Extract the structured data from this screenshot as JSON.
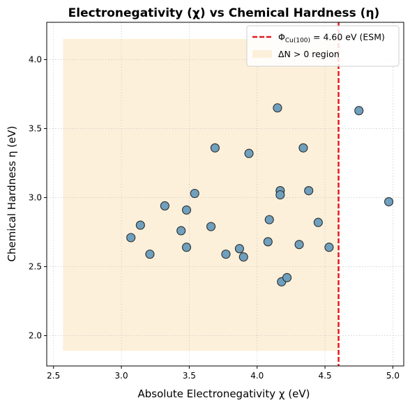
{
  "chart_data": {
    "type": "scatter",
    "title": "Electronegativity (χ) vs Chemical Hardness (η)",
    "xlabel": "Absolute Electronegativity χ (eV)",
    "ylabel": "Chemical Hardness η (eV)",
    "xlim": [
      2.45,
      5.08
    ],
    "ylim": [
      1.78,
      4.27
    ],
    "xticks": [
      "2.5",
      "3.0",
      "3.5",
      "4.0",
      "4.5",
      "5.0"
    ],
    "yticks": [
      "2.0",
      "2.5",
      "3.0",
      "3.5",
      "4.0"
    ],
    "grid": true,
    "legend_position": "top-right",
    "marker_color": "#6fa0bd",
    "marker_edge": "#2b2b2b",
    "shaded_region": {
      "x_range": [
        2.57,
        4.6
      ],
      "y_range": [
        1.89,
        4.15
      ],
      "color": "#fdf0da",
      "label": "ΔN > 0 region"
    },
    "vertical_line": {
      "x": 4.6,
      "color": "#e31a1c",
      "style": "dashed",
      "label_main": "Φ",
      "label_sub": "Cu(100)",
      "label_rest": " = 4.60 eV (ESM)"
    },
    "points": [
      {
        "x": 3.07,
        "y": 2.71
      },
      {
        "x": 3.14,
        "y": 2.8
      },
      {
        "x": 3.21,
        "y": 2.59
      },
      {
        "x": 3.32,
        "y": 2.94
      },
      {
        "x": 3.44,
        "y": 2.76
      },
      {
        "x": 3.48,
        "y": 2.91
      },
      {
        "x": 3.48,
        "y": 2.64
      },
      {
        "x": 3.54,
        "y": 3.03
      },
      {
        "x": 3.66,
        "y": 2.79
      },
      {
        "x": 3.69,
        "y": 3.36
      },
      {
        "x": 3.77,
        "y": 2.59
      },
      {
        "x": 3.87,
        "y": 2.63
      },
      {
        "x": 3.9,
        "y": 2.57
      },
      {
        "x": 3.94,
        "y": 3.32
      },
      {
        "x": 4.08,
        "y": 2.68
      },
      {
        "x": 4.09,
        "y": 2.84
      },
      {
        "x": 4.15,
        "y": 3.65
      },
      {
        "x": 4.17,
        "y": 3.05
      },
      {
        "x": 4.17,
        "y": 3.02
      },
      {
        "x": 4.18,
        "y": 2.39
      },
      {
        "x": 4.22,
        "y": 2.42
      },
      {
        "x": 4.31,
        "y": 2.66
      },
      {
        "x": 4.34,
        "y": 3.36
      },
      {
        "x": 4.38,
        "y": 3.05
      },
      {
        "x": 4.45,
        "y": 2.82
      },
      {
        "x": 4.53,
        "y": 2.64
      },
      {
        "x": 4.75,
        "y": 3.63
      },
      {
        "x": 4.97,
        "y": 2.97
      }
    ]
  }
}
